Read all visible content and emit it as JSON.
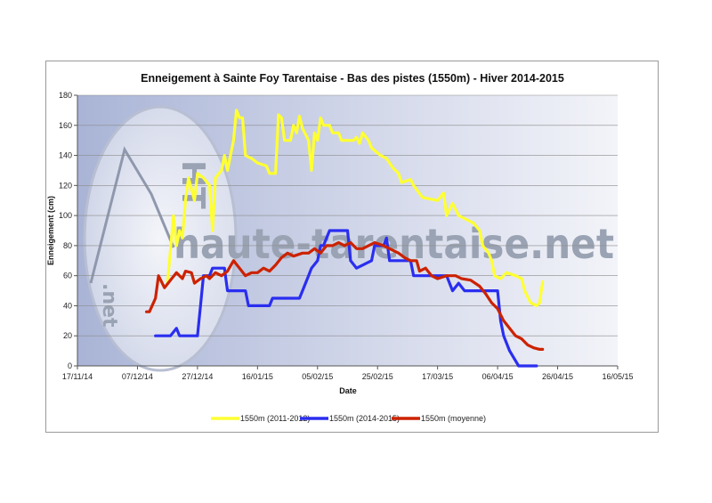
{
  "chart_data": {
    "type": "line",
    "title": "Enneigement à Sainte Foy Tarentaise - Bas des pistes (1550m) - Hiver 2014-2015",
    "xlabel": "Date",
    "ylabel": "Enneigement (cm)",
    "ylim": [
      0,
      180
    ],
    "yticks": [
      "0",
      "20",
      "40",
      "60",
      "80",
      "100",
      "120",
      "140",
      "160",
      "180"
    ],
    "xlim": [
      "2014-11-17",
      "2015-05-16"
    ],
    "xticks": [
      {
        "date": "2014-11-17",
        "label": "17/11/14"
      },
      {
        "date": "2014-12-07",
        "label": "07/12/14"
      },
      {
        "date": "2014-12-27",
        "label": "27/12/14"
      },
      {
        "date": "2015-01-16",
        "label": "16/01/15"
      },
      {
        "date": "2015-02-05",
        "label": "05/02/15"
      },
      {
        "date": "2015-02-25",
        "label": "25/02/15"
      },
      {
        "date": "2015-03-17",
        "label": "17/03/15"
      },
      {
        "date": "2015-04-06",
        "label": "06/04/15"
      },
      {
        "date": "2015-04-26",
        "label": "26/04/15"
      },
      {
        "date": "2015-05-16",
        "label": "16/05/15"
      }
    ],
    "grid": "horizontal",
    "legend_position": "bottom",
    "watermark": [
      "HT",
      "haute-tarentaise.net",
      ".net"
    ],
    "series": [
      {
        "name": "1550m (2011-2012)",
        "color": "#ffff33",
        "points": [
          [
            "2014-12-17",
            55
          ],
          [
            "2014-12-19",
            100
          ],
          [
            "2014-12-20",
            80
          ],
          [
            "2014-12-21",
            90
          ],
          [
            "2014-12-22",
            85
          ],
          [
            "2014-12-23",
            110
          ],
          [
            "2014-12-24",
            125
          ],
          [
            "2014-12-26",
            110
          ],
          [
            "2014-12-27",
            128
          ],
          [
            "2014-12-29",
            125
          ],
          [
            "2014-12-31",
            120
          ],
          [
            "2015-01-01",
            90
          ],
          [
            "2015-01-02",
            125
          ],
          [
            "2015-01-04",
            130
          ],
          [
            "2015-01-05",
            140
          ],
          [
            "2015-01-06",
            130
          ],
          [
            "2015-01-08",
            150
          ],
          [
            "2015-01-09",
            170
          ],
          [
            "2015-01-10",
            165
          ],
          [
            "2015-01-11",
            165
          ],
          [
            "2015-01-12",
            140
          ],
          [
            "2015-01-14",
            138
          ],
          [
            "2015-01-16",
            135
          ],
          [
            "2015-01-19",
            133
          ],
          [
            "2015-01-20",
            128
          ],
          [
            "2015-01-22",
            128
          ],
          [
            "2015-01-23",
            167
          ],
          [
            "2015-01-24",
            165
          ],
          [
            "2015-01-25",
            150
          ],
          [
            "2015-01-27",
            150
          ],
          [
            "2015-01-28",
            160
          ],
          [
            "2015-01-29",
            155
          ],
          [
            "2015-01-30",
            166
          ],
          [
            "2015-01-31",
            158
          ],
          [
            "2015-02-02",
            150
          ],
          [
            "2015-02-03",
            130
          ],
          [
            "2015-02-04",
            155
          ],
          [
            "2015-02-05",
            150
          ],
          [
            "2015-02-06",
            165
          ],
          [
            "2015-02-07",
            160
          ],
          [
            "2015-02-09",
            160
          ],
          [
            "2015-02-10",
            155
          ],
          [
            "2015-02-12",
            155
          ],
          [
            "2015-02-13",
            150
          ],
          [
            "2015-02-17",
            150
          ],
          [
            "2015-02-18",
            152
          ],
          [
            "2015-02-19",
            148
          ],
          [
            "2015-02-20",
            155
          ],
          [
            "2015-02-22",
            150
          ],
          [
            "2015-02-23",
            145
          ],
          [
            "2015-02-26",
            140
          ],
          [
            "2015-02-28",
            138
          ],
          [
            "2015-03-02",
            132
          ],
          [
            "2015-03-04",
            128
          ],
          [
            "2015-03-05",
            122
          ],
          [
            "2015-03-08",
            124
          ],
          [
            "2015-03-09",
            120
          ],
          [
            "2015-03-12",
            112
          ],
          [
            "2015-03-17",
            110
          ],
          [
            "2015-03-19",
            115
          ],
          [
            "2015-03-20",
            100
          ],
          [
            "2015-03-22",
            108
          ],
          [
            "2015-03-24",
            100
          ],
          [
            "2015-03-26",
            98
          ],
          [
            "2015-03-29",
            95
          ],
          [
            "2015-03-31",
            90
          ],
          [
            "2015-04-01",
            80
          ],
          [
            "2015-04-03",
            75
          ],
          [
            "2015-04-04",
            70
          ],
          [
            "2015-04-05",
            60
          ],
          [
            "2015-04-07",
            58
          ],
          [
            "2015-04-09",
            62
          ],
          [
            "2015-04-12",
            60
          ],
          [
            "2015-04-14",
            58
          ],
          [
            "2015-04-15",
            50
          ],
          [
            "2015-04-17",
            42
          ],
          [
            "2015-04-19",
            40
          ],
          [
            "2015-04-20",
            42
          ],
          [
            "2015-04-21",
            56
          ]
        ]
      },
      {
        "name": "1550m (2014-2015)",
        "color": "#2a2ef0",
        "points": [
          [
            "2014-12-13",
            20
          ],
          [
            "2014-12-18",
            20
          ],
          [
            "2014-12-20",
            25
          ],
          [
            "2014-12-21",
            20
          ],
          [
            "2014-12-27",
            20
          ],
          [
            "2014-12-28",
            40
          ],
          [
            "2014-12-29",
            60
          ],
          [
            "2014-12-31",
            60
          ],
          [
            "2015-01-01",
            65
          ],
          [
            "2015-01-05",
            65
          ],
          [
            "2015-01-06",
            50
          ],
          [
            "2015-01-12",
            50
          ],
          [
            "2015-01-13",
            40
          ],
          [
            "2015-01-20",
            40
          ],
          [
            "2015-01-21",
            45
          ],
          [
            "2015-01-30",
            45
          ],
          [
            "2015-01-31",
            50
          ],
          [
            "2015-02-01",
            55
          ],
          [
            "2015-02-02",
            60
          ],
          [
            "2015-02-03",
            65
          ],
          [
            "2015-02-05",
            70
          ],
          [
            "2015-02-06",
            80
          ],
          [
            "2015-02-07",
            80
          ],
          [
            "2015-02-08",
            85
          ],
          [
            "2015-02-09",
            90
          ],
          [
            "2015-02-15",
            90
          ],
          [
            "2015-02-16",
            70
          ],
          [
            "2015-02-18",
            65
          ],
          [
            "2015-02-23",
            70
          ],
          [
            "2015-02-24",
            80
          ],
          [
            "2015-02-27",
            80
          ],
          [
            "2015-02-28",
            85
          ],
          [
            "2015-03-01",
            70
          ],
          [
            "2015-03-08",
            70
          ],
          [
            "2015-03-09",
            60
          ],
          [
            "2015-03-20",
            60
          ],
          [
            "2015-03-22",
            50
          ],
          [
            "2015-03-24",
            55
          ],
          [
            "2015-03-26",
            50
          ],
          [
            "2015-04-06",
            50
          ],
          [
            "2015-04-07",
            30
          ],
          [
            "2015-04-08",
            20
          ],
          [
            "2015-04-10",
            10
          ],
          [
            "2015-04-13",
            0
          ],
          [
            "2015-04-19",
            0
          ]
        ]
      },
      {
        "name": "1550m (moyenne)",
        "color": "#cc2200",
        "points": [
          [
            "2014-12-10",
            36
          ],
          [
            "2014-12-11",
            36
          ],
          [
            "2014-12-13",
            45
          ],
          [
            "2014-12-14",
            60
          ],
          [
            "2014-12-16",
            52
          ],
          [
            "2014-12-18",
            57
          ],
          [
            "2014-12-20",
            62
          ],
          [
            "2014-12-22",
            58
          ],
          [
            "2014-12-23",
            63
          ],
          [
            "2014-12-25",
            62
          ],
          [
            "2014-12-26",
            55
          ],
          [
            "2014-12-28",
            58
          ],
          [
            "2014-12-30",
            60
          ],
          [
            "2014-12-31",
            58
          ],
          [
            "2015-01-02",
            62
          ],
          [
            "2015-01-04",
            60
          ],
          [
            "2015-01-06",
            63
          ],
          [
            "2015-01-08",
            70
          ],
          [
            "2015-01-10",
            65
          ],
          [
            "2015-01-12",
            60
          ],
          [
            "2015-01-14",
            62
          ],
          [
            "2015-01-16",
            62
          ],
          [
            "2015-01-18",
            65
          ],
          [
            "2015-01-20",
            63
          ],
          [
            "2015-01-22",
            67
          ],
          [
            "2015-01-24",
            72
          ],
          [
            "2015-01-26",
            75
          ],
          [
            "2015-01-28",
            73
          ],
          [
            "2015-01-31",
            75
          ],
          [
            "2015-02-02",
            75
          ],
          [
            "2015-02-04",
            78
          ],
          [
            "2015-02-06",
            75
          ],
          [
            "2015-02-08",
            80
          ],
          [
            "2015-02-10",
            80
          ],
          [
            "2015-02-12",
            82
          ],
          [
            "2015-02-14",
            80
          ],
          [
            "2015-02-16",
            82
          ],
          [
            "2015-02-18",
            78
          ],
          [
            "2015-02-20",
            78
          ],
          [
            "2015-02-22",
            80
          ],
          [
            "2015-02-24",
            82
          ],
          [
            "2015-02-27",
            80
          ],
          [
            "2015-03-01",
            78
          ],
          [
            "2015-03-04",
            75
          ],
          [
            "2015-03-06",
            72
          ],
          [
            "2015-03-08",
            70
          ],
          [
            "2015-03-10",
            70
          ],
          [
            "2015-03-11",
            63
          ],
          [
            "2015-03-13",
            65
          ],
          [
            "2015-03-15",
            60
          ],
          [
            "2015-03-17",
            58
          ],
          [
            "2015-03-20",
            60
          ],
          [
            "2015-03-23",
            60
          ],
          [
            "2015-03-25",
            58
          ],
          [
            "2015-03-28",
            57
          ],
          [
            "2015-03-31",
            53
          ],
          [
            "2015-04-02",
            48
          ],
          [
            "2015-04-04",
            42
          ],
          [
            "2015-04-06",
            38
          ],
          [
            "2015-04-08",
            30
          ],
          [
            "2015-04-10",
            25
          ],
          [
            "2015-04-12",
            20
          ],
          [
            "2015-04-14",
            18
          ],
          [
            "2015-04-16",
            14
          ],
          [
            "2015-04-18",
            12
          ],
          [
            "2015-04-20",
            11
          ],
          [
            "2015-04-21",
            11
          ]
        ]
      }
    ]
  }
}
